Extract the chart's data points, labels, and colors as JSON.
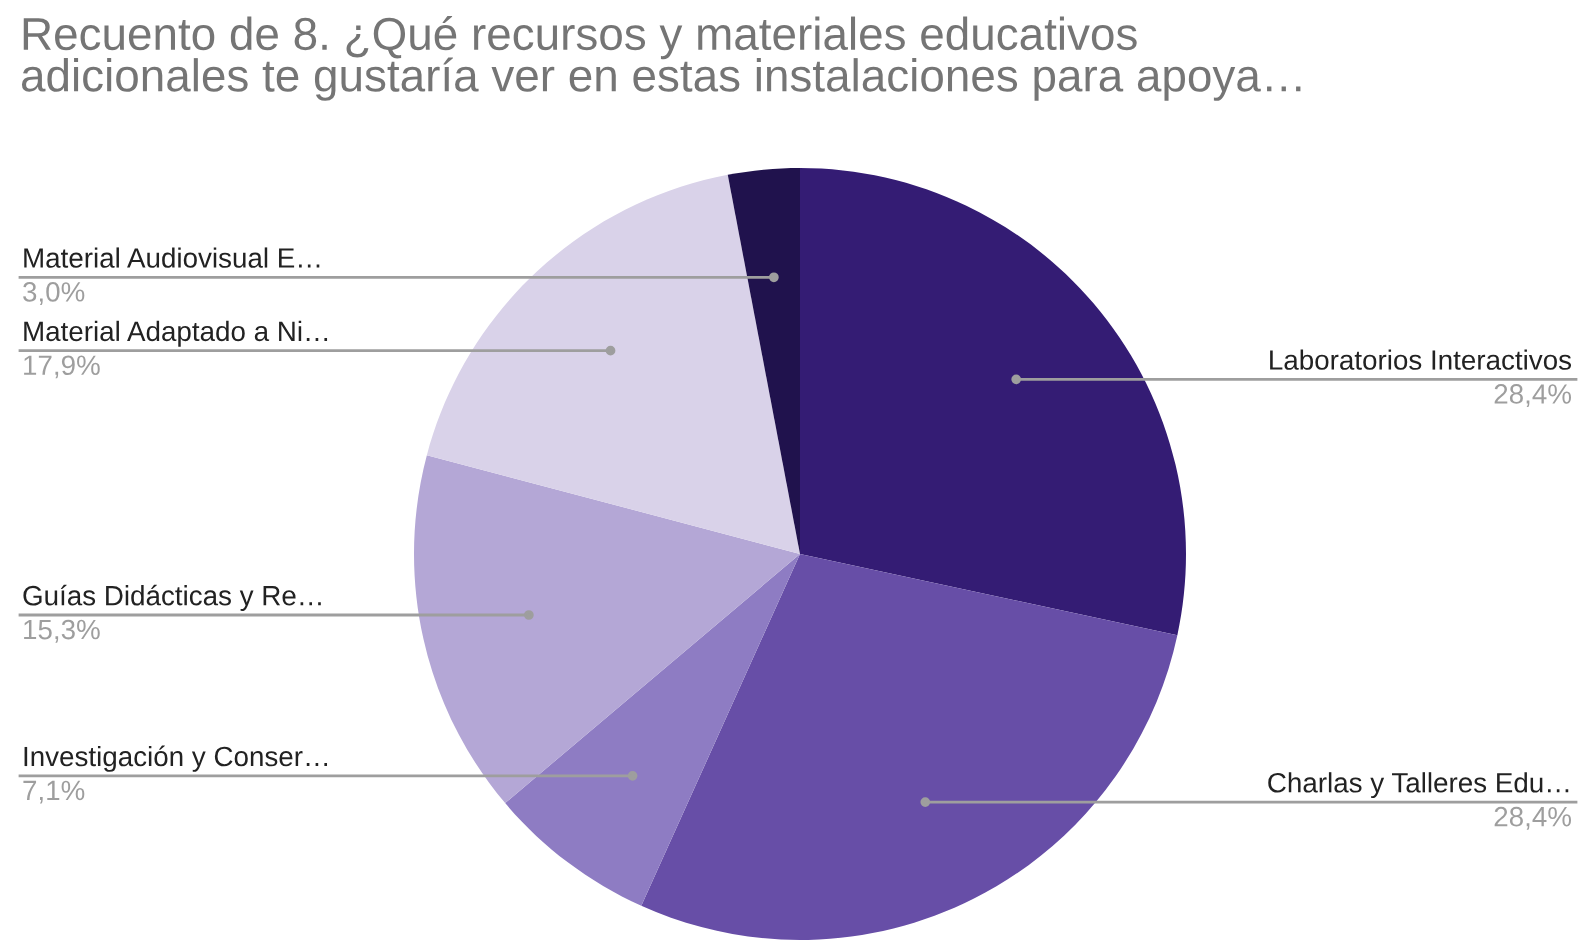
{
  "chart_data": {
    "type": "pie",
    "title": "Recuento de 8. ¿Qué recursos y materiales educativos\nadicionales te gustaría ver en estas instalaciones para apoya…",
    "categories": [
      "Laboratorios Interactivos",
      "Charlas y Talleres Edu…",
      "Investigación y Conser…",
      "Guías Didácticas y Re…",
      "Material Adaptado a Ni…",
      "Material Audiovisual E…"
    ],
    "values": [
      28.4,
      28.4,
      7.1,
      15.3,
      17.9,
      3.0
    ],
    "value_labels": [
      "28,4%",
      "28,4%",
      "7,1%",
      "15,3%",
      "17,9%",
      "3,0%"
    ],
    "colors": [
      "#341c74",
      "#674ea7",
      "#8e7cc3",
      "#b4a7d6",
      "#d9d2e9",
      "#20124d"
    ]
  }
}
